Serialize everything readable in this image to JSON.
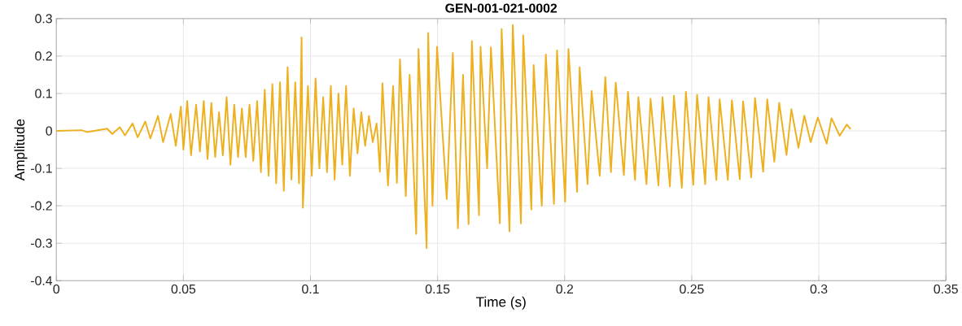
{
  "chart_data": {
    "type": "line",
    "title": "GEN-001-021-0002",
    "xlabel": "Time (s)",
    "ylabel": "Amplitude",
    "xlim": [
      0,
      0.35
    ],
    "ylim": [
      -0.4,
      0.3
    ],
    "xticks": [
      0,
      0.05,
      0.1,
      0.15,
      0.2,
      0.25,
      0.3,
      0.35
    ],
    "yticks": [
      -0.4,
      -0.3,
      -0.2,
      -0.1,
      0,
      0.1,
      0.2,
      0.3
    ],
    "grid": true,
    "marker": "none",
    "line_style": "solid",
    "x": [
      0,
      0.01,
      0.012,
      0.02,
      0.022,
      0.025,
      0.027,
      0.03,
      0.032,
      0.035,
      0.037,
      0.04,
      0.042,
      0.045,
      0.047,
      0.049,
      0.05,
      0.0515,
      0.053,
      0.055,
      0.0565,
      0.058,
      0.0595,
      0.061,
      0.0625,
      0.064,
      0.0655,
      0.067,
      0.0685,
      0.07,
      0.0715,
      0.073,
      0.0745,
      0.076,
      0.0775,
      0.079,
      0.0805,
      0.082,
      0.0835,
      0.085,
      0.0865,
      0.088,
      0.0895,
      0.091,
      0.0925,
      0.094,
      0.0955,
      0.0965,
      0.097,
      0.099,
      0.1005,
      0.102,
      0.1035,
      0.105,
      0.1065,
      0.108,
      0.1095,
      0.111,
      0.1125,
      0.114,
      0.1155,
      0.117,
      0.1185,
      0.12,
      0.1215,
      0.123,
      0.1245,
      0.126,
      0.1265,
      0.1273,
      0.1283,
      0.1305,
      0.1325,
      0.134,
      0.1352,
      0.1375,
      0.139,
      0.1416,
      0.1425,
      0.1457,
      0.1463,
      0.148,
      0.1498,
      0.1536,
      0.156,
      0.158,
      0.16,
      0.1622,
      0.1635,
      0.1663,
      0.1669,
      0.1695,
      0.171,
      0.1745,
      0.1752,
      0.1783,
      0.1796,
      0.1828,
      0.1837,
      0.1869,
      0.1878,
      0.191,
      0.1926,
      0.1958,
      0.197,
      0.2002,
      0.2015,
      0.2049,
      0.2059,
      0.209,
      0.2106,
      0.2138,
      0.216,
      0.2182,
      0.2201,
      0.2233,
      0.2249,
      0.2277,
      0.229,
      0.2322,
      0.2338,
      0.2369,
      0.2385,
      0.2414,
      0.243,
      0.2461,
      0.2477,
      0.2506,
      0.2521,
      0.2553,
      0.2566,
      0.2597,
      0.261,
      0.2642,
      0.2658,
      0.2689,
      0.2702,
      0.2734,
      0.2749,
      0.2781,
      0.2797,
      0.2825,
      0.2844,
      0.2873,
      0.2892,
      0.292,
      0.2943,
      0.2968,
      0.2996,
      0.3031,
      0.305,
      0.3082,
      0.311,
      0.3125
    ],
    "series": [
      {
        "color": "#edb120",
        "values": [
          0,
          0.002,
          -0.003,
          0.006,
          -0.008,
          0.01,
          -0.012,
          0.02,
          -0.017,
          0.025,
          -0.02,
          0.04,
          -0.03,
          0.045,
          -0.04,
          0.065,
          -0.05,
          0.08,
          -0.065,
          0.07,
          -0.055,
          0.08,
          -0.075,
          0.075,
          -0.07,
          0.05,
          -0.065,
          0.09,
          -0.09,
          0.07,
          -0.07,
          0.06,
          -0.07,
          0.07,
          -0.08,
          0.08,
          -0.11,
          0.11,
          -0.12,
          0.125,
          -0.14,
          0.13,
          -0.16,
          0.17,
          -0.13,
          0.13,
          -0.14,
          0.25,
          -0.205,
          0.12,
          -0.12,
          0.14,
          -0.1,
          0.09,
          -0.11,
          0.12,
          -0.13,
          0.1,
          -0.09,
          0.12,
          -0.12,
          0.06,
          -0.06,
          0.05,
          -0.04,
          0.04,
          -0.03,
          0.02,
          -0.02,
          -0.109,
          0.127,
          -0.146,
          0.12,
          -0.139,
          0.191,
          -0.174,
          0.15,
          -0.275,
          0.219,
          -0.313,
          0.262,
          -0.2,
          0.225,
          -0.182,
          0.208,
          -0.26,
          0.15,
          -0.249,
          0.24,
          -0.225,
          0.225,
          -0.1,
          0.223,
          -0.247,
          0.272,
          -0.268,
          0.283,
          -0.247,
          0.255,
          -0.21,
          0.176,
          -0.2,
          0.204,
          -0.195,
          0.215,
          -0.189,
          0.219,
          -0.163,
          0.17,
          -0.142,
          0.107,
          -0.12,
          0.144,
          -0.11,
          0.129,
          -0.118,
          0.105,
          -0.131,
          0.09,
          -0.142,
          0.086,
          -0.146,
          0.09,
          -0.148,
          0.094,
          -0.152,
          0.105,
          -0.144,
          0.097,
          -0.142,
          0.09,
          -0.131,
          0.084,
          -0.131,
          0.082,
          -0.129,
          0.079,
          -0.124,
          0.088,
          -0.109,
          0.084,
          -0.082,
          0.075,
          -0.064,
          0.058,
          -0.045,
          0.041,
          -0.03,
          0.036,
          -0.034,
          0.034,
          -0.013,
          0.017,
          0.005
        ]
      }
    ]
  }
}
